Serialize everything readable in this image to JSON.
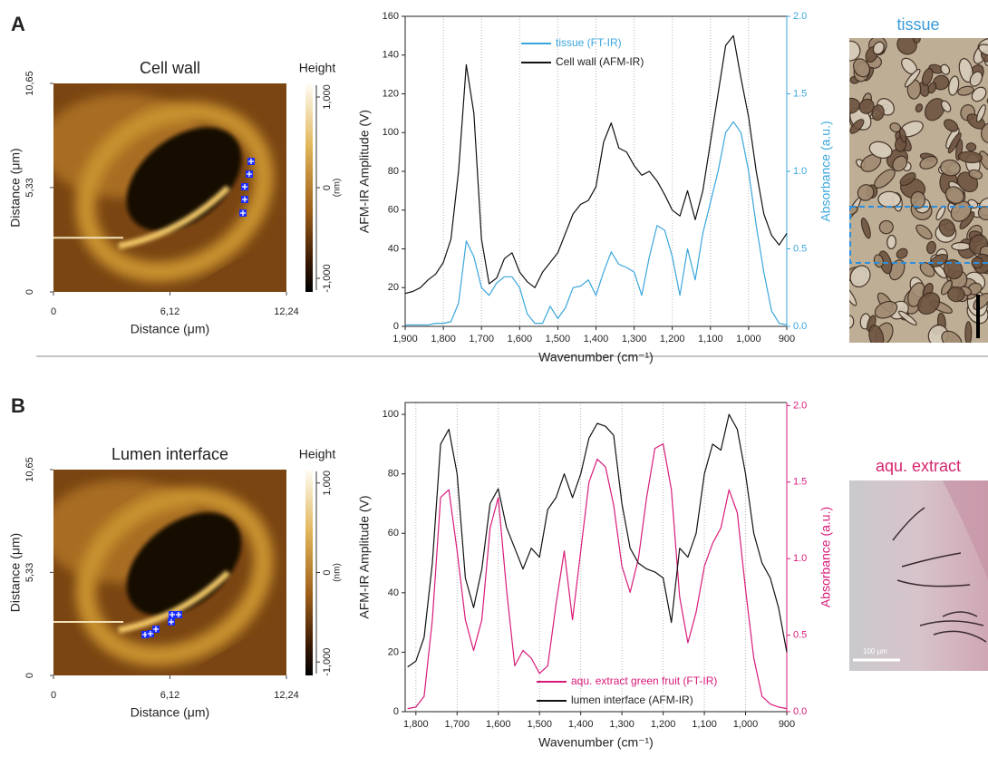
{
  "panels": [
    {
      "label": "A",
      "photo": {
        "title": "tissue"
      }
    },
    {
      "label": "B",
      "photo": {
        "title": "aqu. extract",
        "scale": "100 µm"
      }
    }
  ],
  "chart_data": [
    {
      "type": "afm-image",
      "title": "Cell wall",
      "xlabel": "Distance (μm)",
      "ylabel": "Distance (μm)",
      "xlim": [
        0,
        12.24
      ],
      "ylim": [
        0,
        10.65
      ],
      "xticks": [
        0,
        {
          "value": 6.12,
          "label": "6,12"
        },
        {
          "value": 12.24,
          "label": "12,24"
        }
      ],
      "yticks": [
        0,
        {
          "value": 5.33,
          "label": "5,33"
        },
        {
          "value": 10.65,
          "label": "10,65"
        }
      ],
      "colorbar": {
        "title": "Height",
        "unit": "(nm)",
        "lim": [
          -1150,
          1150
        ],
        "ticks": [
          {
            "value": -1000,
            "label": "-1,000"
          },
          0,
          {
            "value": 1000,
            "label": "1,000"
          }
        ]
      }
    },
    {
      "type": "line",
      "xlabel": "Wavenumber (cm⁻¹)",
      "ylabel": "AFM-IR Amplitude (V)",
      "y2label": "Absorbance (a.u.)",
      "xlim": [
        1900,
        900
      ],
      "ylim": [
        0,
        160
      ],
      "y2lim": [
        0,
        2.0
      ],
      "grid": true,
      "xticks": [
        {
          "value": 1900,
          "label": "1,900"
        },
        {
          "value": 1800,
          "label": "1,800"
        },
        {
          "value": 1700,
          "label": "1,700"
        },
        {
          "value": 1600,
          "label": "1,600"
        },
        {
          "value": 1500,
          "label": "1,500"
        },
        {
          "value": 1400,
          "label": "1,400"
        },
        {
          "value": 1300,
          "label": "1,300"
        },
        {
          "value": 1200,
          "label": "1,200"
        },
        {
          "value": 1100,
          "label": "1,100"
        },
        {
          "value": 1000,
          "label": "1,000"
        },
        900
      ],
      "yticks": [
        0,
        20,
        40,
        60,
        80,
        100,
        120,
        140,
        160
      ],
      "y2ticks": [
        {
          "value": 0,
          "label": "0.0"
        },
        0.5,
        {
          "value": 1,
          "label": "1.0"
        },
        1.5,
        {
          "value": 2,
          "label": "2.0"
        }
      ],
      "x": [
        1900,
        1880,
        1860,
        1840,
        1820,
        1800,
        1780,
        1760,
        1740,
        1720,
        1700,
        1680,
        1660,
        1640,
        1620,
        1600,
        1580,
        1560,
        1540,
        1520,
        1500,
        1480,
        1460,
        1440,
        1420,
        1400,
        1380,
        1360,
        1340,
        1320,
        1300,
        1280,
        1260,
        1240,
        1220,
        1200,
        1180,
        1160,
        1140,
        1120,
        1100,
        1080,
        1060,
        1040,
        1020,
        1000,
        980,
        960,
        940,
        920,
        900
      ],
      "series": [
        {
          "name": "tissue (FT-IR)",
          "color": "#3aa6dc",
          "axis": "y2",
          "values": [
            0.01,
            0.01,
            0.01,
            0.01,
            0.02,
            0.02,
            0.03,
            0.15,
            0.55,
            0.45,
            0.25,
            0.2,
            0.28,
            0.32,
            0.32,
            0.25,
            0.08,
            0.02,
            0.02,
            0.13,
            0.05,
            0.12,
            0.25,
            0.26,
            0.3,
            0.2,
            0.35,
            0.48,
            0.4,
            0.38,
            0.35,
            0.2,
            0.45,
            0.65,
            0.62,
            0.45,
            0.2,
            0.5,
            0.3,
            0.6,
            0.8,
            1.0,
            1.25,
            1.32,
            1.25,
            1.0,
            0.65,
            0.35,
            0.1,
            0.02,
            0.01
          ]
        },
        {
          "name": "Cell wall (AFM-IR)",
          "color": "#111111",
          "values": [
            17,
            18,
            20,
            24,
            27,
            33,
            45,
            80,
            135,
            110,
            45,
            22,
            25,
            35,
            38,
            28,
            23,
            20,
            28,
            33,
            38,
            48,
            58,
            63,
            65,
            72,
            95,
            105,
            92,
            90,
            83,
            78,
            80,
            75,
            68,
            60,
            57,
            70,
            55,
            70,
            95,
            120,
            145,
            150,
            128,
            108,
            80,
            58,
            47,
            42,
            48
          ]
        }
      ]
    },
    {
      "type": "afm-image",
      "title": "Lumen interface",
      "xlabel": "Distance (μm)",
      "ylabel": "Distance (μm)",
      "xlim": [
        0,
        12.24
      ],
      "ylim": [
        0,
        10.65
      ],
      "xticks": [
        0,
        {
          "value": 6.12,
          "label": "6,12"
        },
        {
          "value": 12.24,
          "label": "12,24"
        }
      ],
      "yticks": [
        0,
        {
          "value": 5.33,
          "label": "5,33"
        },
        {
          "value": 10.65,
          "label": "10,65"
        }
      ],
      "colorbar": {
        "title": "Height",
        "unit": "(nm)",
        "lim": [
          -1150,
          1150
        ],
        "ticks": [
          {
            "value": -1000,
            "label": "-1,000"
          },
          0,
          {
            "value": 1000,
            "label": "1,000"
          }
        ]
      }
    },
    {
      "type": "line",
      "xlabel": "Wavenumber (cm⁻¹)",
      "ylabel": "AFM-IR Amplitude (V)",
      "y2label": "Absorbance (a.u.)",
      "xlim": [
        1826,
        900
      ],
      "ylim": [
        0,
        104
      ],
      "y2lim": [
        0,
        2.02
      ],
      "grid": true,
      "xticks": [
        {
          "value": 1800,
          "label": "1,800"
        },
        {
          "value": 1700,
          "label": "1,700"
        },
        {
          "value": 1600,
          "label": "1,600"
        },
        {
          "value": 1500,
          "label": "1,500"
        },
        {
          "value": 1400,
          "label": "1,400"
        },
        {
          "value": 1300,
          "label": "1,300"
        },
        {
          "value": 1200,
          "label": "1,200"
        },
        {
          "value": 1100,
          "label": "1,100"
        },
        {
          "value": 1000,
          "label": "1,000"
        },
        900
      ],
      "yticks": [
        0,
        20,
        40,
        60,
        80,
        100
      ],
      "y2ticks": [
        {
          "value": 0,
          "label": "0.0"
        },
        0.5,
        {
          "value": 1,
          "label": "1.0"
        },
        1.5,
        {
          "value": 2,
          "label": "2.0"
        }
      ],
      "x": [
        1820,
        1800,
        1780,
        1760,
        1740,
        1720,
        1700,
        1680,
        1660,
        1640,
        1620,
        1600,
        1580,
        1560,
        1540,
        1520,
        1500,
        1480,
        1460,
        1440,
        1420,
        1400,
        1380,
        1360,
        1340,
        1320,
        1300,
        1280,
        1260,
        1240,
        1220,
        1200,
        1180,
        1160,
        1140,
        1120,
        1100,
        1080,
        1060,
        1040,
        1020,
        1000,
        980,
        960,
        940,
        920,
        900
      ],
      "series": [
        {
          "name": "aqu. extract green fruit (FT-IR)",
          "color": "#d81b7a",
          "axis": "y2",
          "values": [
            0.02,
            0.03,
            0.1,
            0.6,
            1.4,
            1.45,
            1.05,
            0.6,
            0.4,
            0.6,
            1.2,
            1.4,
            0.8,
            0.3,
            0.4,
            0.35,
            0.25,
            0.3,
            0.7,
            1.05,
            0.6,
            1.05,
            1.5,
            1.65,
            1.6,
            1.35,
            0.95,
            0.78,
            1.0,
            1.4,
            1.72,
            1.75,
            1.45,
            0.75,
            0.45,
            0.65,
            0.95,
            1.1,
            1.2,
            1.45,
            1.3,
            0.8,
            0.35,
            0.1,
            0.05,
            0.03,
            0.02
          ]
        },
        {
          "name": "lumen interface (AFM-IR)",
          "color": "#111111",
          "values": [
            15,
            17,
            25,
            50,
            90,
            95,
            80,
            45,
            35,
            48,
            70,
            75,
            62,
            55,
            48,
            55,
            52,
            68,
            72,
            80,
            72,
            80,
            92,
            97,
            96,
            93,
            70,
            55,
            50,
            48,
            47,
            45,
            30,
            55,
            52,
            60,
            80,
            90,
            88,
            100,
            95,
            80,
            60,
            50,
            45,
            35,
            20
          ]
        }
      ]
    }
  ]
}
